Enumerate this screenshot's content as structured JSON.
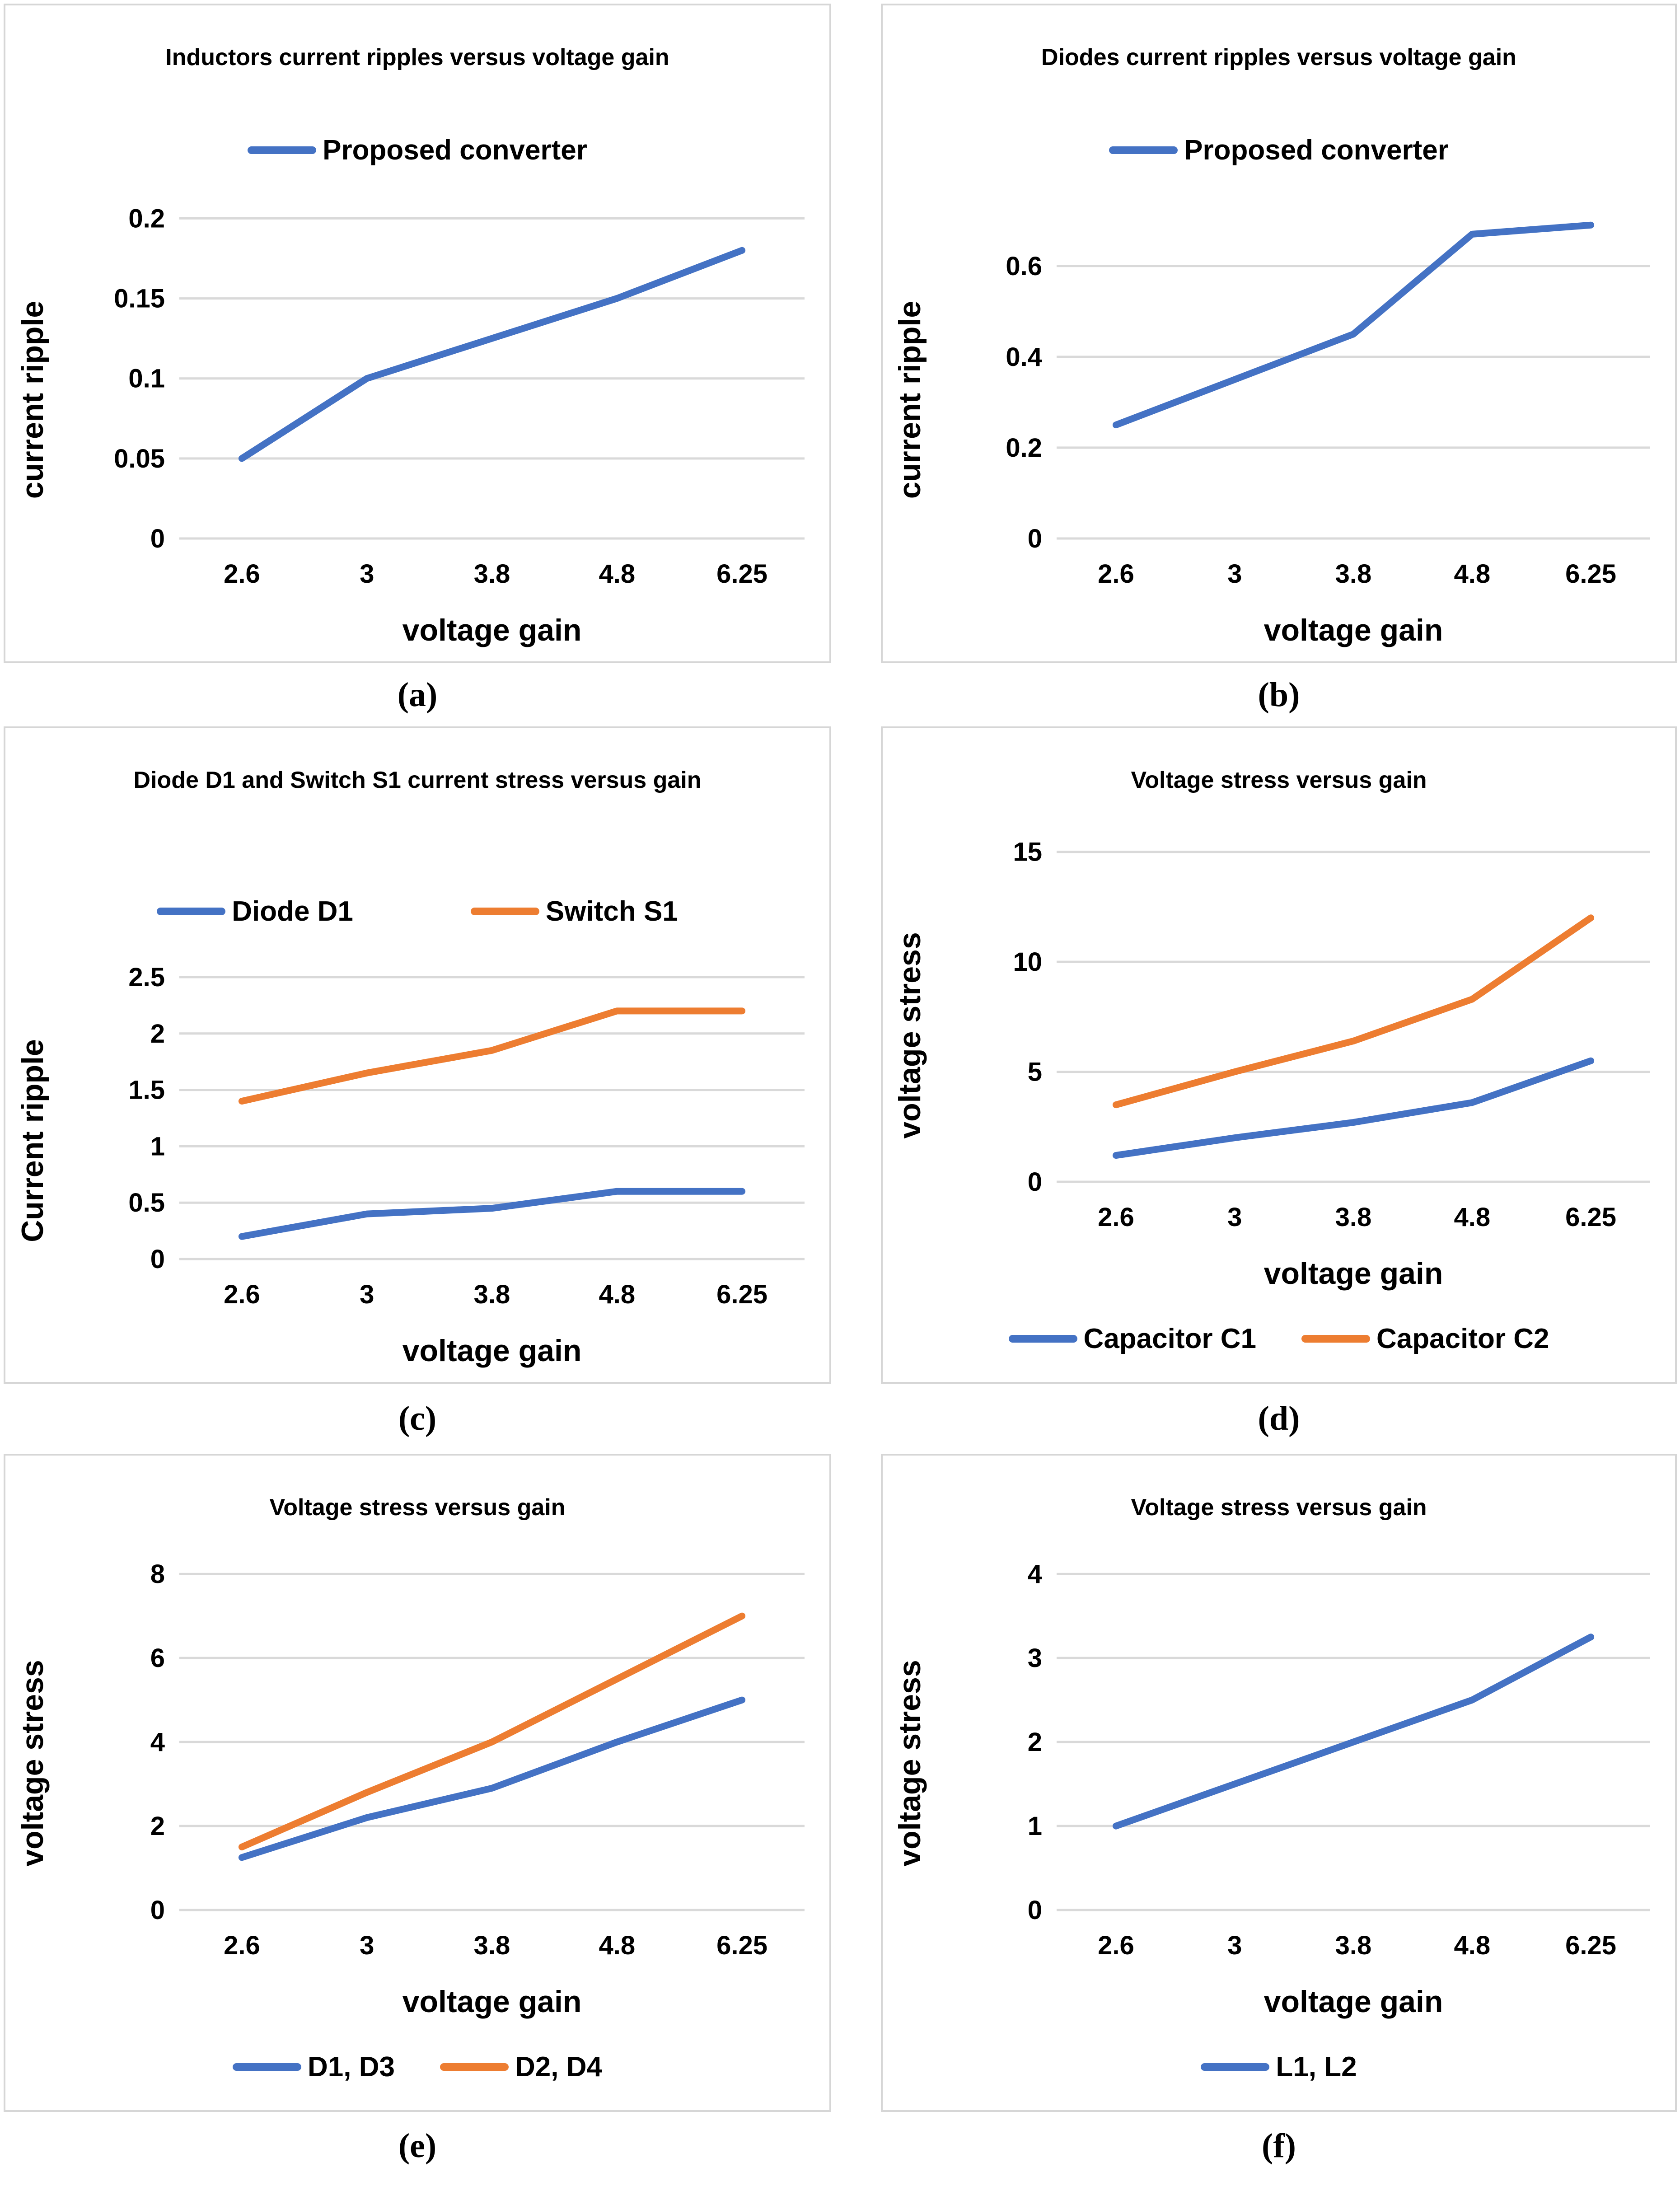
{
  "figure": {
    "layout": "2x3-grid-of-line-charts",
    "background": "#ffffff",
    "colors": {
      "series_blue": "#4472c4",
      "series_orange": "#ed7d31",
      "gridline": "#d9d9d9",
      "panel_border": "#d6d6d6",
      "text": "#000000"
    }
  },
  "chart_data": [
    {
      "type": "line",
      "caption": "(a)",
      "title": "Inductors current ripples versus voltage gain",
      "xlabel": "voltage gain",
      "ylabel": "current ripple",
      "categories": [
        "2.6",
        "3",
        "3.8",
        "4.8",
        "6.25"
      ],
      "yticks": [
        0,
        0.05,
        0.1,
        0.15,
        0.2
      ],
      "ytick_labels": [
        "0",
        "0.05",
        "0.1",
        "0.15",
        "0.2"
      ],
      "ylim": [
        0,
        0.21
      ],
      "grid": true,
      "legend_position": "top",
      "series": [
        {
          "name": "Proposed converter",
          "color": "#4472c4",
          "values": [
            0.05,
            0.1,
            0.125,
            0.15,
            0.18
          ]
        }
      ]
    },
    {
      "type": "line",
      "caption": "(b)",
      "title": "Diodes current ripples versus voltage gain",
      "xlabel": "voltage gain",
      "ylabel": "current ripple",
      "categories": [
        "2.6",
        "3",
        "3.8",
        "4.8",
        "6.25"
      ],
      "yticks": [
        0,
        0.2,
        0.4,
        0.6
      ],
      "ytick_labels": [
        "0",
        "0.2",
        "0.4",
        "0.6"
      ],
      "ylim": [
        0,
        0.74
      ],
      "grid": true,
      "legend_position": "top",
      "series": [
        {
          "name": "Proposed converter",
          "color": "#4472c4",
          "values": [
            0.25,
            0.35,
            0.45,
            0.67,
            0.69
          ]
        }
      ]
    },
    {
      "type": "line",
      "caption": "(c)",
      "title": "Diode D1 and Switch S1 current stress versus gain",
      "xlabel": "voltage gain",
      "ylabel": "Current ripple",
      "categories": [
        "2.6",
        "3",
        "3.8",
        "4.8",
        "6.25"
      ],
      "yticks": [
        0,
        0.5,
        1,
        1.5,
        2,
        2.5
      ],
      "ytick_labels": [
        "0",
        "0.5",
        "1",
        "1.5",
        "2",
        "2.5"
      ],
      "ylim": [
        0,
        2.62
      ],
      "grid": true,
      "legend_position": "top",
      "series": [
        {
          "name": "Diode D1",
          "color": "#4472c4",
          "values": [
            0.2,
            0.4,
            0.45,
            0.6,
            0.6
          ]
        },
        {
          "name": "Switch S1",
          "color": "#ed7d31",
          "values": [
            1.4,
            1.65,
            1.85,
            2.2,
            2.2
          ]
        }
      ]
    },
    {
      "type": "line",
      "caption": "(d)",
      "title": "Voltage stress versus gain",
      "xlabel": "voltage gain",
      "ylabel": "voltage stress",
      "categories": [
        "2.6",
        "3",
        "3.8",
        "4.8",
        "6.25"
      ],
      "yticks": [
        0,
        5,
        10,
        15
      ],
      "ytick_labels": [
        "0",
        "5",
        "10",
        "15"
      ],
      "ylim": [
        0,
        16
      ],
      "grid": true,
      "legend_position": "bottom",
      "series": [
        {
          "name": "Capacitor C1",
          "color": "#4472c4",
          "values": [
            1.2,
            2,
            2.7,
            3.6,
            5.5
          ]
        },
        {
          "name": "Capacitor C2",
          "color": "#ed7d31",
          "values": [
            3.5,
            5,
            6.4,
            8.3,
            12
          ]
        }
      ]
    },
    {
      "type": "line",
      "caption": "(e)",
      "title": "Voltage stress versus gain",
      "xlabel": "voltage gain",
      "ylabel": "voltage stress",
      "categories": [
        "2.6",
        "3",
        "3.8",
        "4.8",
        "6.25"
      ],
      "yticks": [
        0,
        2,
        4,
        6,
        8
      ],
      "ytick_labels": [
        "0",
        "2",
        "4",
        "6",
        "8"
      ],
      "ylim": [
        0,
        8.4
      ],
      "grid": true,
      "legend_position": "bottom",
      "series": [
        {
          "name": "D1, D3",
          "color": "#4472c4",
          "values": [
            1.25,
            2.2,
            2.9,
            4,
            5
          ]
        },
        {
          "name": "D2, D4",
          "color": "#ed7d31",
          "values": [
            1.5,
            2.8,
            4,
            5.5,
            7
          ]
        }
      ]
    },
    {
      "type": "line",
      "caption": "(f)",
      "title": "Voltage stress versus gain",
      "xlabel": "voltage gain",
      "ylabel": "voltage stress",
      "categories": [
        "2.6",
        "3",
        "3.8",
        "4.8",
        "6.25"
      ],
      "yticks": [
        0,
        1,
        2,
        3,
        4
      ],
      "ytick_labels": [
        "0",
        "1",
        "2",
        "3",
        "4"
      ],
      "ylim": [
        0,
        4.2
      ],
      "grid": true,
      "legend_position": "bottom",
      "series": [
        {
          "name": "L1, L2",
          "color": "#4472c4",
          "values": [
            1,
            1.5,
            2,
            2.5,
            3.25
          ]
        }
      ]
    }
  ]
}
